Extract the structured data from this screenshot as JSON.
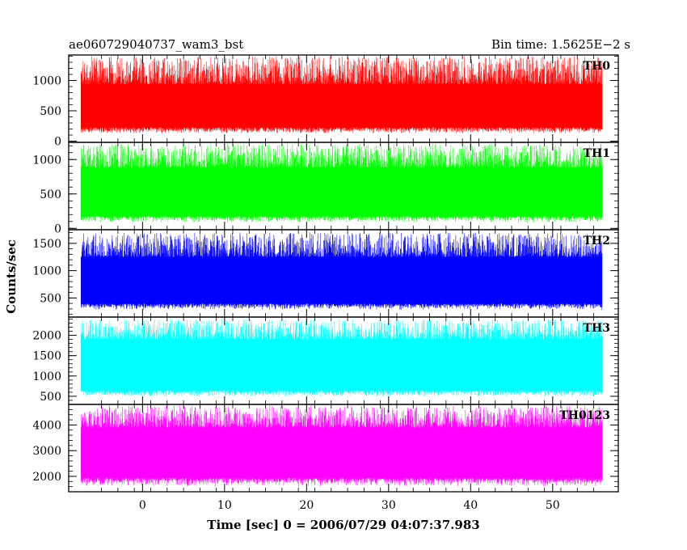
{
  "chart_data": {
    "type": "line",
    "title_left": "ae060729040737_wam3_bst",
    "title_right": "Bin time: 1.5625E−2 s",
    "xlabel": "Time [sec] 0 = 2006/07/29 04:07:37.983",
    "ylabel": "Counts/sec",
    "xlim": [
      -9,
      58
    ],
    "x_data_range": [
      -7.5,
      56
    ],
    "x_ticks": [
      0,
      10,
      20,
      30,
      40,
      50
    ],
    "x_tick_labels": [
      "0",
      "10",
      "20",
      "30",
      "40",
      "50"
    ],
    "grid": false,
    "panels": [
      {
        "name": "TH0",
        "color": "#ff0000",
        "ylim": [
          -20,
          1420
        ],
        "y_ticks": [
          0,
          500,
          1000
        ],
        "y_tick_labels": [
          "0",
          "500",
          "1000"
        ],
        "baseline_low": 120,
        "band_low": 230,
        "band_high": 940,
        "spike_high": 1400
      },
      {
        "name": "TH1",
        "color": "#00ff00",
        "ylim": [
          -20,
          1250
        ],
        "y_ticks": [
          0,
          500,
          1000
        ],
        "y_tick_labels": [
          "0",
          "500",
          "1000"
        ],
        "baseline_low": 80,
        "band_low": 180,
        "band_high": 880,
        "spike_high": 1230
      },
      {
        "name": "TH2",
        "color": "#0000ff",
        "ylim": [
          150,
          1750
        ],
        "y_ticks": [
          500,
          1000,
          1500
        ],
        "y_tick_labels": [
          "500",
          "1000",
          "1500"
        ],
        "baseline_low": 280,
        "band_low": 400,
        "band_high": 1250,
        "spike_high": 1700
      },
      {
        "name": "TH3",
        "color": "#00ffff",
        "ylim": [
          300,
          2450
        ],
        "y_ticks": [
          500,
          1000,
          1500,
          2000
        ],
        "y_tick_labels": [
          "500",
          "1000",
          "1500",
          "2000"
        ],
        "baseline_low": 480,
        "band_low": 650,
        "band_high": 1900,
        "spike_high": 2400
      },
      {
        "name": "TH0123",
        "color": "#ff00ff",
        "ylim": [
          1400,
          4800
        ],
        "y_ticks": [
          2000,
          3000,
          4000
        ],
        "y_tick_labels": [
          "2000",
          "3000",
          "4000"
        ],
        "baseline_low": 1600,
        "band_low": 1950,
        "band_high": 3900,
        "spike_high": 4750
      }
    ]
  }
}
